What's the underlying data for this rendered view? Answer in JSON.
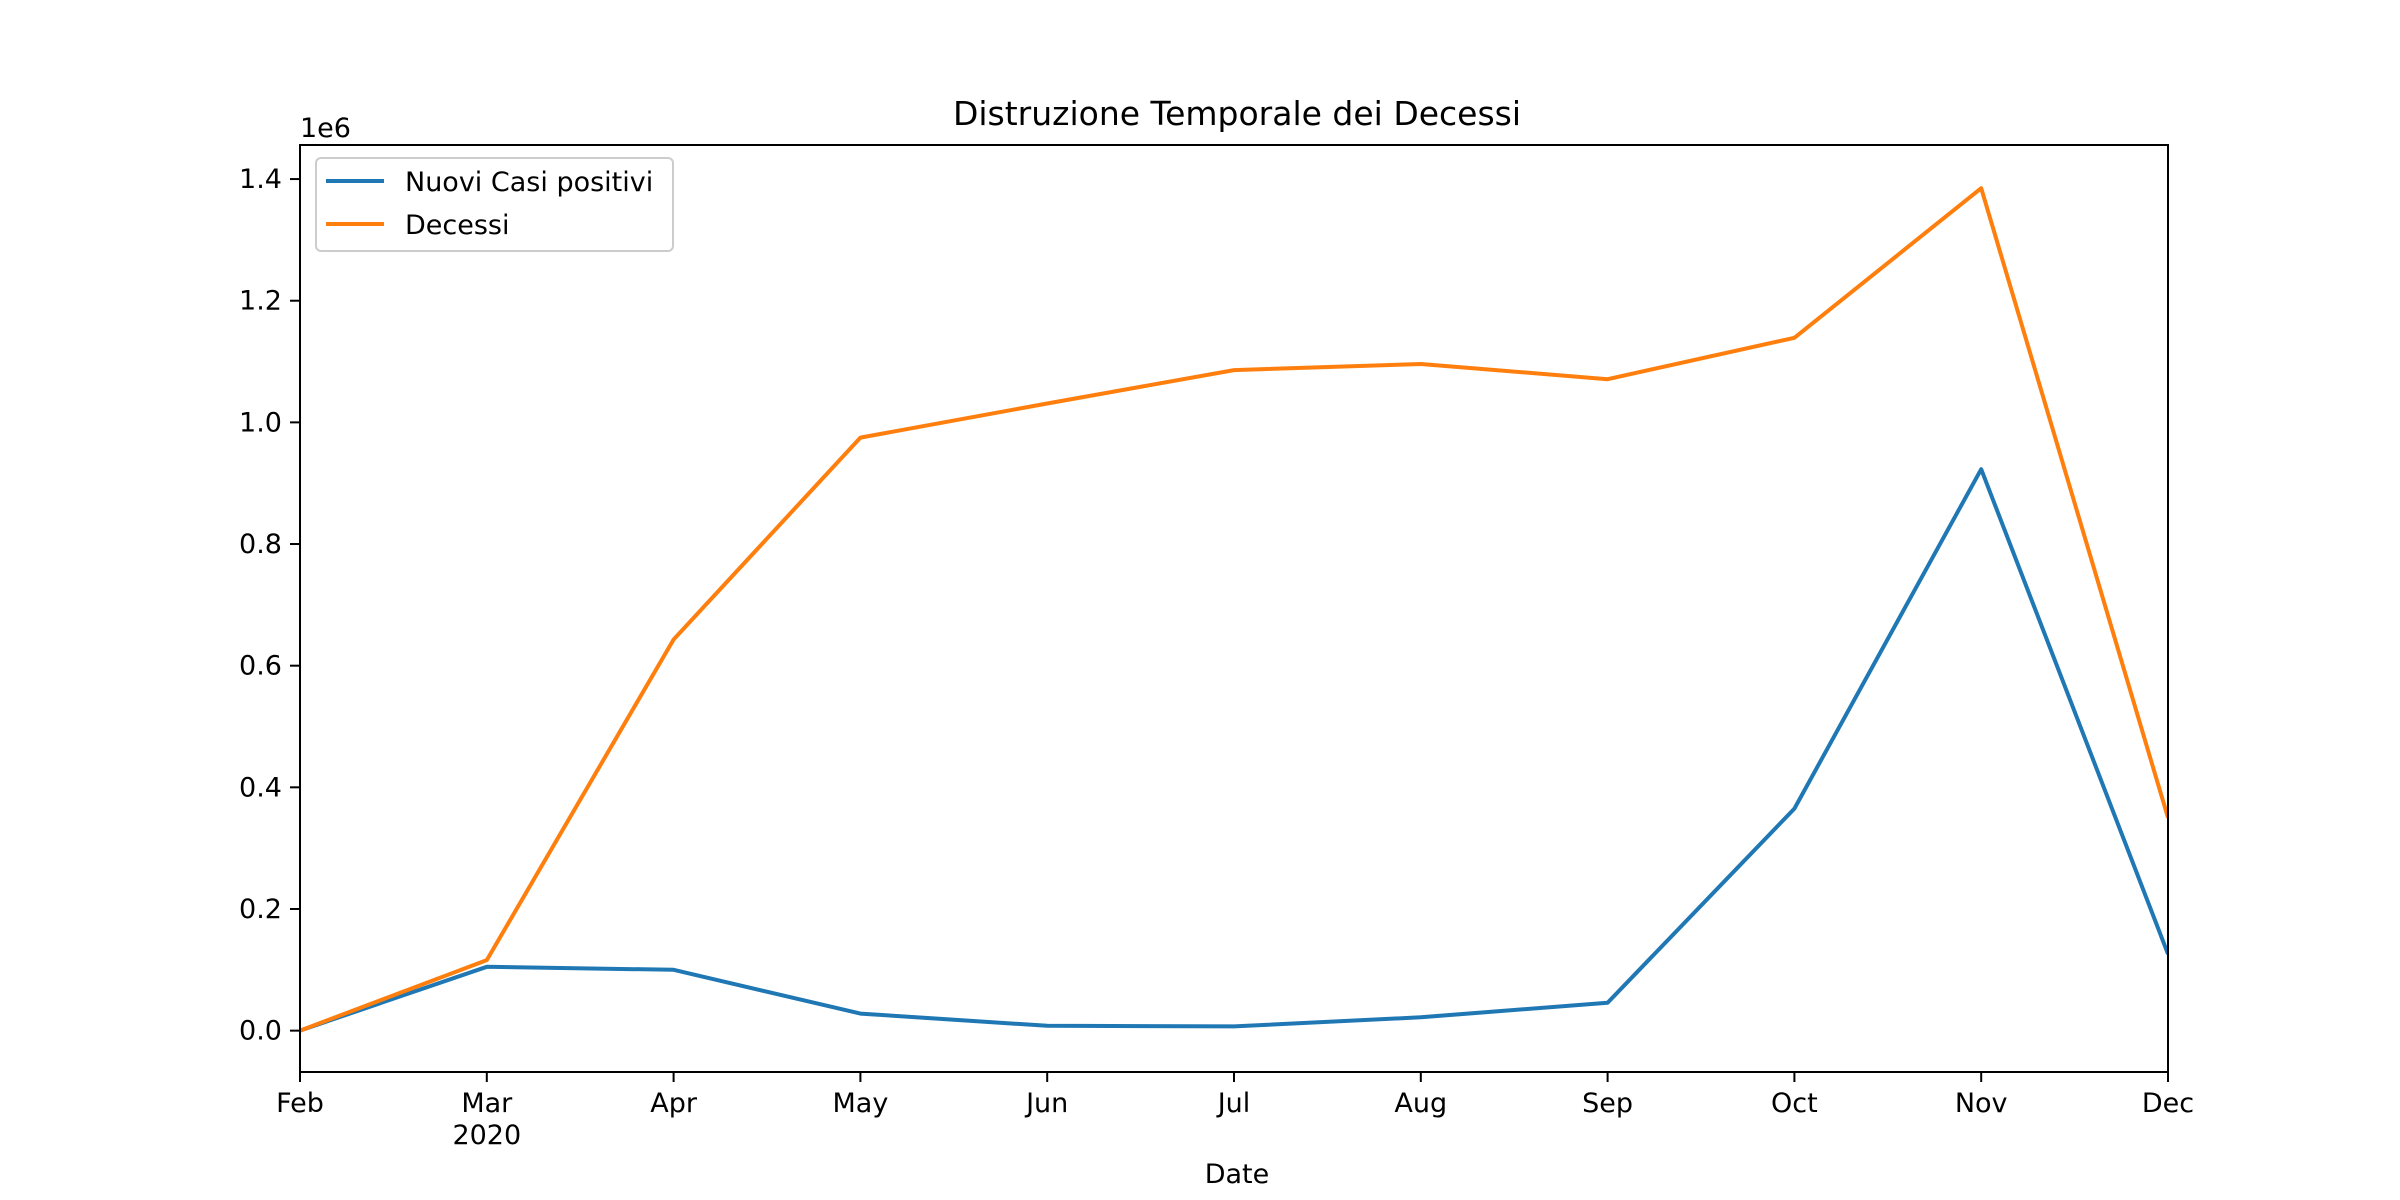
{
  "chart_data": {
    "type": "line",
    "title": "Distruzione Temporale dei Decessi",
    "xlabel": "Date",
    "ylabel": "",
    "y_offset_label": "1e6",
    "x": [
      "2020-02",
      "2020-03",
      "2020-04",
      "2020-05",
      "2020-06",
      "2020-07",
      "2020-08",
      "2020-09",
      "2020-10",
      "2020-11",
      "2020-12"
    ],
    "x_ticks": [
      {
        "label": "Feb",
        "sub": ""
      },
      {
        "label": "Mar",
        "sub": "2020"
      },
      {
        "label": "Apr",
        "sub": ""
      },
      {
        "label": "May",
        "sub": ""
      },
      {
        "label": "Jun",
        "sub": ""
      },
      {
        "label": "Jul",
        "sub": ""
      },
      {
        "label": "Aug",
        "sub": ""
      },
      {
        "label": "Sep",
        "sub": ""
      },
      {
        "label": "Oct",
        "sub": ""
      },
      {
        "label": "Nov",
        "sub": ""
      },
      {
        "label": "Dec",
        "sub": ""
      }
    ],
    "y_ticks": [
      0.0,
      0.2,
      0.4,
      0.6,
      0.8,
      1.0,
      1.2,
      1.4
    ],
    "y_tick_labels": [
      "0.0",
      "0.2",
      "0.4",
      "0.6",
      "0.8",
      "1.0",
      "1.2",
      "1.4"
    ],
    "ylim": [
      -0.068,
      1.456
    ],
    "grid": false,
    "legend_position": "top-left",
    "series": [
      {
        "name": "Nuovi Casi positivi",
        "color": "#1f77b4",
        "values": [
          0.0,
          0.105,
          0.1,
          0.028,
          0.008,
          0.007,
          0.022,
          0.046,
          0.365,
          0.923,
          0.126
        ]
      },
      {
        "name": "Decessi",
        "color": "#ff7f0e",
        "values": [
          0.0,
          0.116,
          0.643,
          0.975,
          1.031,
          1.086,
          1.096,
          1.071,
          1.139,
          1.385,
          0.35
        ]
      }
    ]
  }
}
